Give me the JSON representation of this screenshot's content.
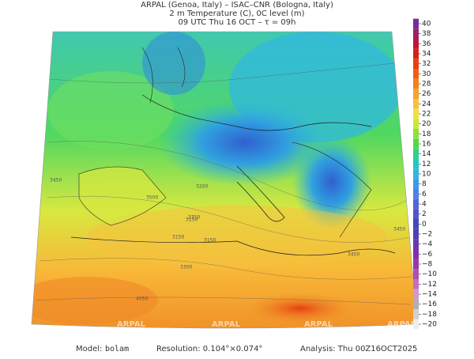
{
  "header": {
    "lines": [
      "ARPAL (Genoa, Italy)  –  ISAC–CNR (Bologna, Italy)",
      "2 m Temperature (C), 0C level (m)",
      "09 UTC Thu 16 OCT  –  τ = 09h"
    ]
  },
  "colorbar": {
    "labels": [
      "40",
      "38",
      "36",
      "34",
      "32",
      "30",
      "28",
      "26",
      "24",
      "22",
      "20",
      "18",
      "16",
      "14",
      "12",
      "10",
      "8",
      "6",
      "4",
      "2",
      "0",
      "−2",
      "−4",
      "−6",
      "−8",
      "−10",
      "−12",
      "−14",
      "−16",
      "−18",
      "−20"
    ],
    "colors": [
      "#7a2a9a",
      "#a0206a",
      "#c01830",
      "#d82018",
      "#e84010",
      "#f06010",
      "#f58020",
      "#f8a030",
      "#f8c040",
      "#f0e040",
      "#c8e838",
      "#90e040",
      "#50d848",
      "#30d090",
      "#20c8c0",
      "#30b8e0",
      "#4098e8",
      "#5080e8",
      "#5068d8",
      "#5058c8",
      "#4848b8",
      "#5040b0",
      "#6838b0",
      "#8030a8",
      "#9838a8",
      "#b050b0",
      "#c070c0",
      "#d098d0",
      "#b0b0b0",
      "#d0d0d0",
      "#eeeeee"
    ]
  },
  "map": {
    "contour_labels": [
      "3200",
      "3150",
      "3500",
      "3450",
      "3350",
      "3450",
      "3150",
      "3300",
      "4050",
      "3450",
      "3150"
    ],
    "watermarks": [
      "ARPAL",
      "ARPAL",
      "ARPAL",
      "ARPAL"
    ]
  },
  "footer": {
    "model_label": "Model:",
    "model": "bolam",
    "resolution": "Resolution: 0.104°×0.074°",
    "analysis": "Analysis: Thu 00Z16OCT2025"
  }
}
